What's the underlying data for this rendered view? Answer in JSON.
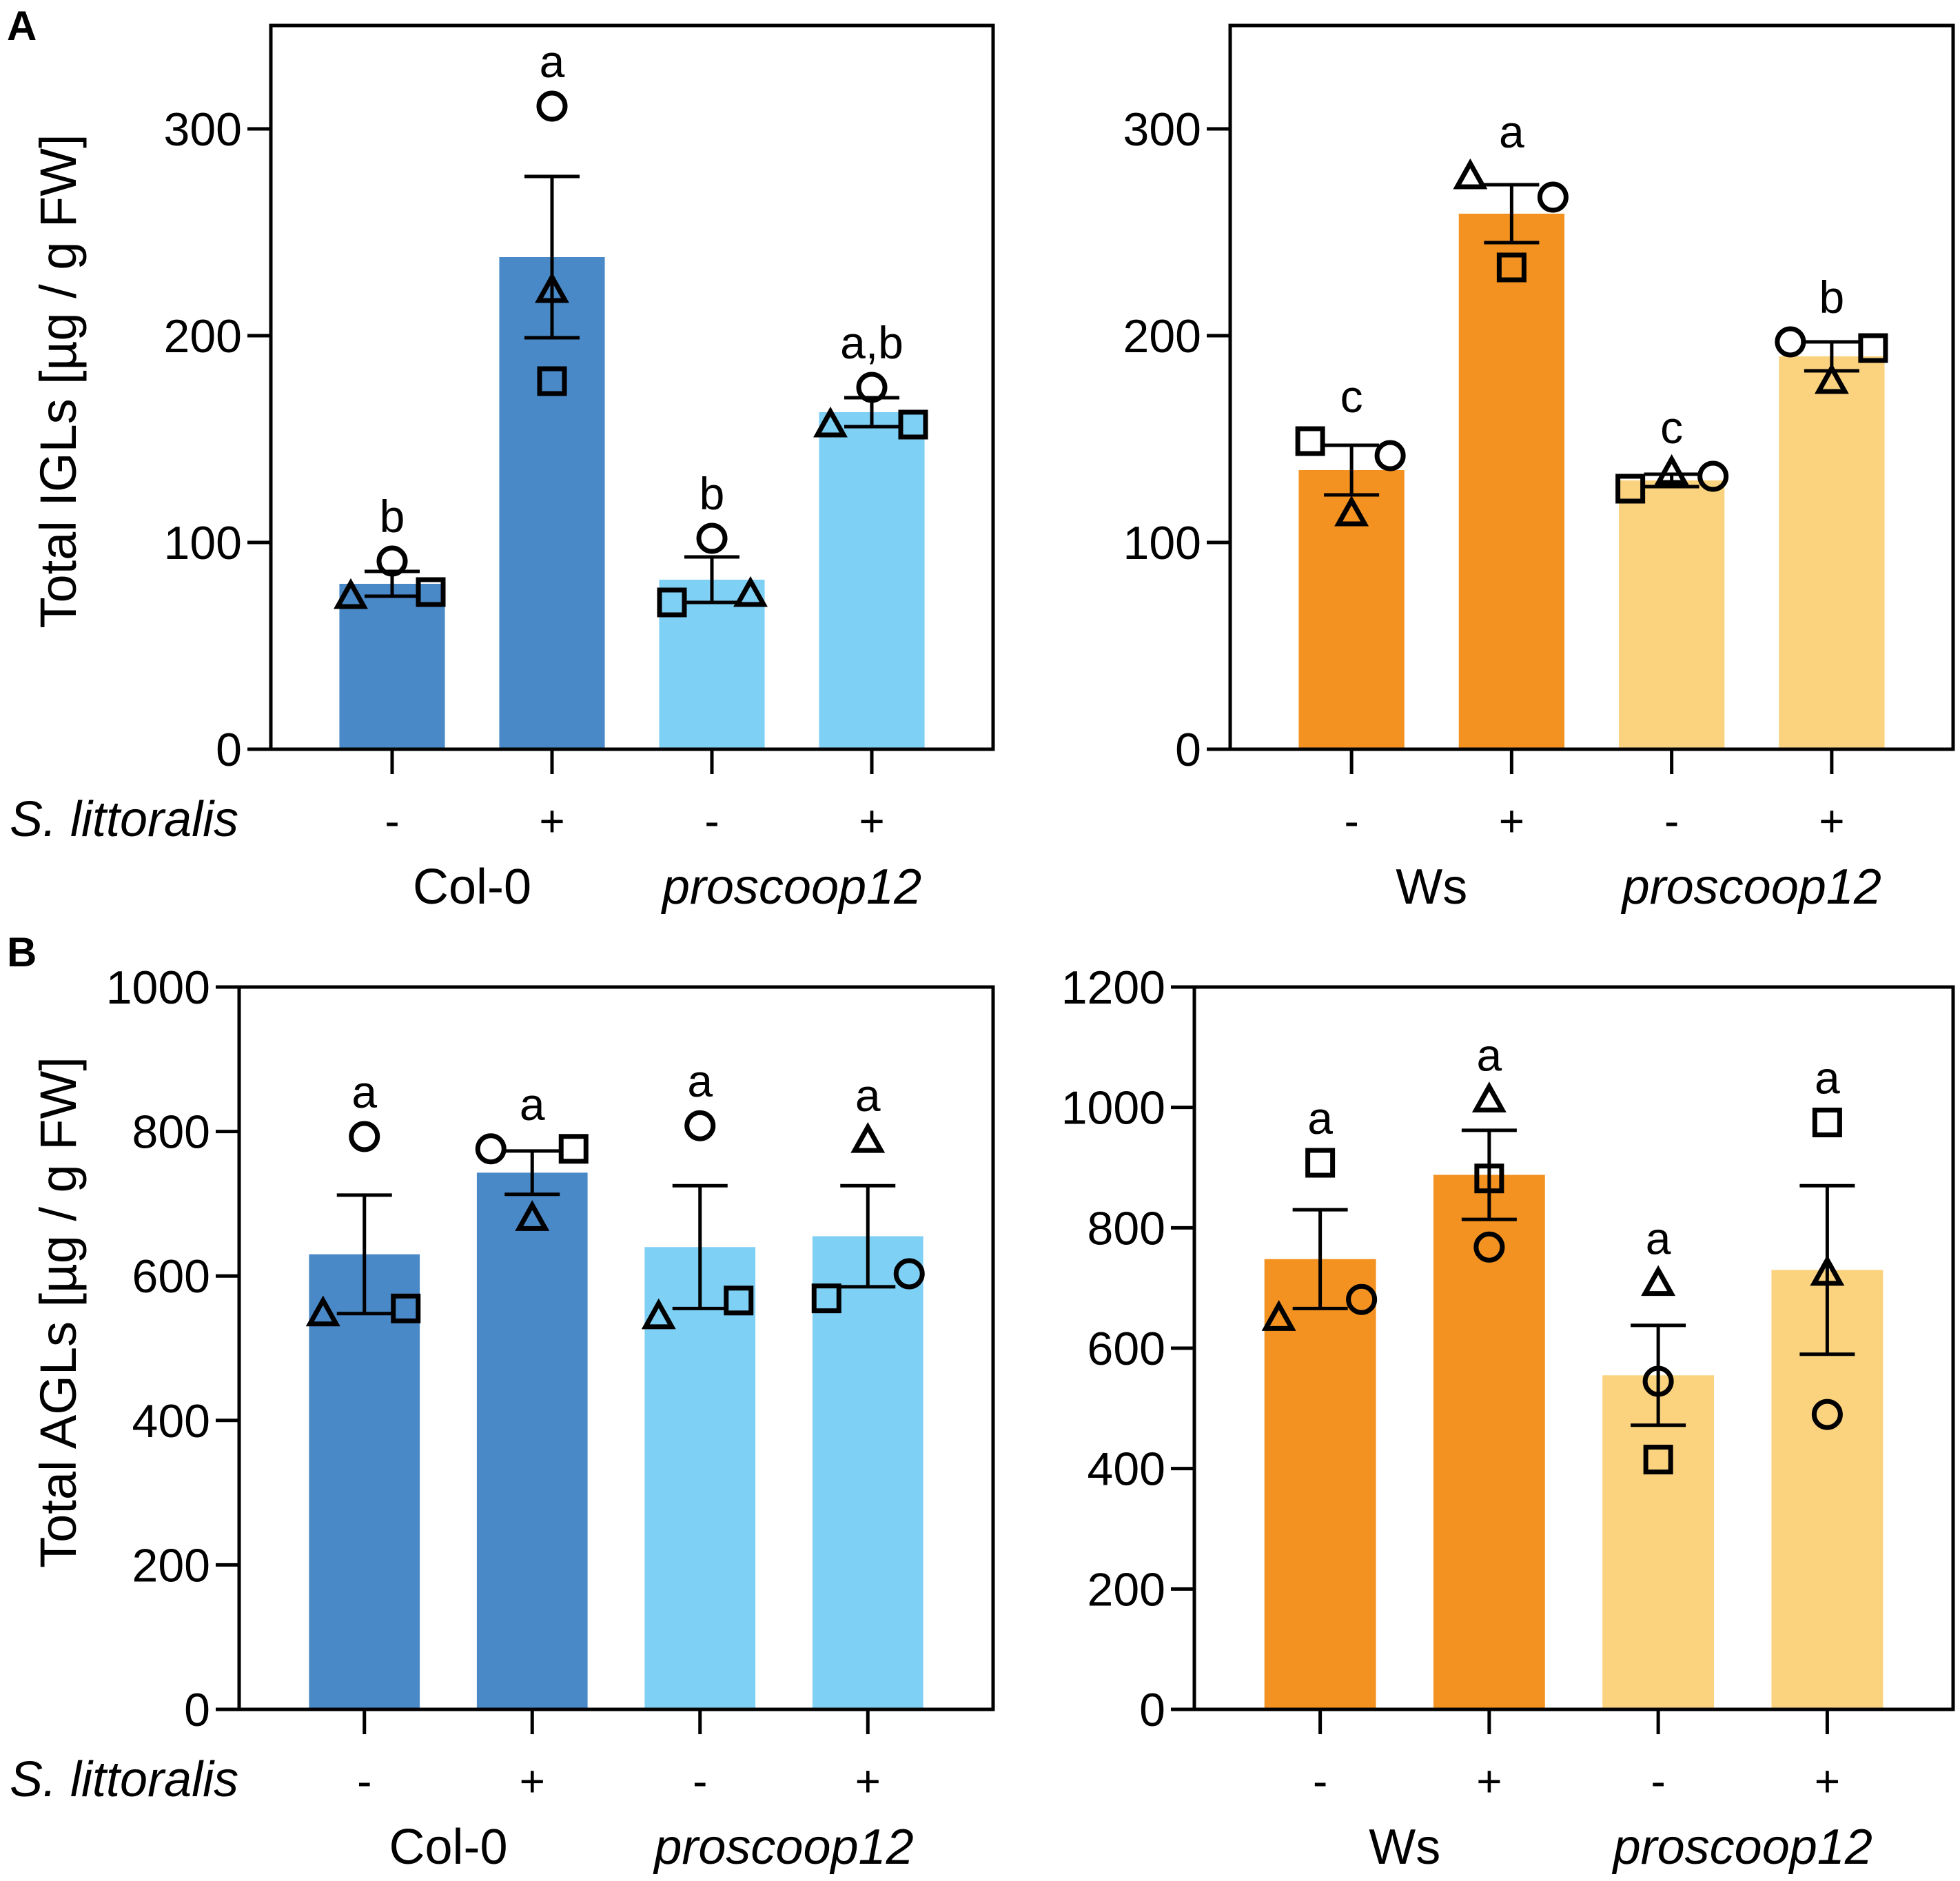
{
  "panel_labels": [
    "A",
    "B"
  ],
  "treatment_label": "S. littoralis",
  "colors": {
    "col0": "#4a89c8",
    "col0_mutant": "#7fd0f5",
    "ws": "#f39221",
    "ws_mutant": "#fbd37f",
    "ink": "#000000"
  },
  "chart_data": [
    {
      "id": "A-left",
      "type": "bar",
      "panel": "A",
      "ylabel": "Total IGLs [µg / g FW]",
      "ylim": [
        0,
        350
      ],
      "yticks": [
        0,
        100,
        200,
        300
      ],
      "categories": [
        "-",
        "+",
        "-",
        "+"
      ],
      "genotypes": [
        "Col-0",
        "proscoop12"
      ],
      "values": [
        80,
        238,
        82,
        163
      ],
      "errors": [
        6,
        39,
        11,
        7
      ],
      "letters": [
        "b",
        "a",
        "b",
        "a,b"
      ],
      "points": [
        {
          "circle": 91,
          "triangle": 74,
          "square": 76
        },
        {
          "circle": 311,
          "triangle": 222,
          "square": 178
        },
        {
          "circle": 102,
          "triangle": 75,
          "square": 71
        },
        {
          "circle": 175,
          "triangle": 157,
          "square": 157
        }
      ]
    },
    {
      "id": "A-right",
      "type": "bar",
      "panel": "A",
      "ylabel": "",
      "ylim": [
        0,
        350
      ],
      "yticks": [
        0,
        100,
        200,
        300
      ],
      "categories": [
        "-",
        "+",
        "-",
        "+"
      ],
      "genotypes": [
        "Ws",
        "proscoop12"
      ],
      "values": [
        135,
        259,
        130,
        190
      ],
      "errors": [
        12,
        14,
        3,
        7
      ],
      "letters": [
        "c",
        "a",
        "c",
        "b"
      ],
      "points": [
        {
          "circle": 142,
          "triangle": 114,
          "square": 149
        },
        {
          "circle": 267,
          "triangle": 277,
          "square": 233
        },
        {
          "circle": 132,
          "triangle": 134,
          "square": 126
        },
        {
          "circle": 197,
          "triangle": 178,
          "square": 194
        }
      ]
    },
    {
      "id": "B-left",
      "type": "bar",
      "panel": "B",
      "ylabel": "Total AGLs [µg / g FW]",
      "ylim": [
        0,
        1000
      ],
      "yticks": [
        0,
        200,
        400,
        600,
        800,
        1000
      ],
      "categories": [
        "-",
        "+",
        "-",
        "+"
      ],
      "genotypes": [
        "Col-0",
        "proscoop12"
      ],
      "values": [
        630,
        743,
        640,
        655
      ],
      "errors": [
        82,
        30,
        85,
        70
      ],
      "letters": [
        "a",
        "a",
        "a",
        "a"
      ],
      "points": [
        {
          "circle": 793,
          "triangle": 548,
          "square": 555
        },
        {
          "circle": 776,
          "triangle": 680,
          "square": 776
        },
        {
          "circle": 808,
          "triangle": 544,
          "square": 566
        },
        {
          "circle": 603,
          "triangle": 788,
          "square": 569
        }
      ]
    },
    {
      "id": "B-right",
      "type": "bar",
      "panel": "B",
      "ylabel": "",
      "ylim": [
        0,
        1200
      ],
      "yticks": [
        0,
        200,
        400,
        600,
        800,
        1000,
        1200
      ],
      "categories": [
        "-",
        "+",
        "-",
        "+"
      ],
      "genotypes": [
        "Ws",
        "proscoop12"
      ],
      "values": [
        748,
        888,
        555,
        730
      ],
      "errors": [
        82,
        74,
        83,
        140
      ],
      "letters": [
        "a",
        "a",
        "a",
        "a"
      ],
      "points": [
        {
          "circle": 681,
          "triangle": 650,
          "square": 908
        },
        {
          "circle": 768,
          "triangle": 1013,
          "square": 882
        },
        {
          "circle": 545,
          "triangle": 708,
          "square": 415
        },
        {
          "circle": 490,
          "triangle": 725,
          "square": 975
        }
      ]
    }
  ]
}
